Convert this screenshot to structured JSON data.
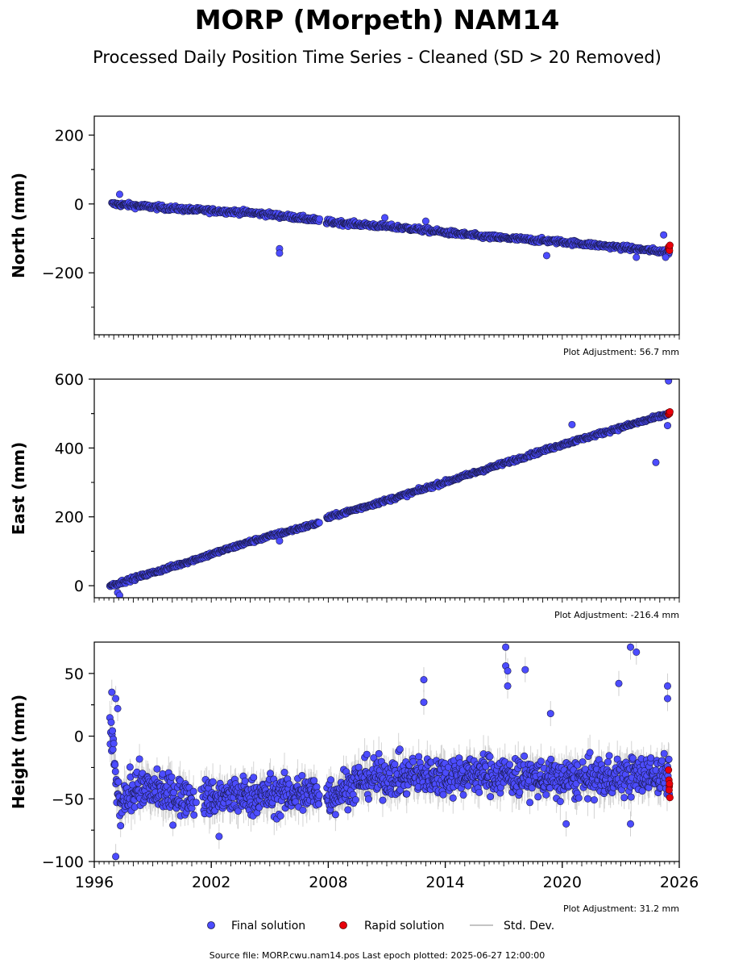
{
  "title": "MORP (Morpeth) NAM14",
  "subtitle": "Processed Daily Position Time Series - Cleaned (SD > 20 Removed)",
  "footer": "Source file: MORP.cwu.nam14.pos  Last epoch plotted: 2025-06-27 12:00:00",
  "legend": {
    "final": "Final solution",
    "rapid": "Rapid solution",
    "std": "Std. Dev."
  },
  "colors": {
    "final": "#4c4cff",
    "final_edge": "#1a1a4a",
    "rapid": "#e8000b",
    "std": "#b0b0b0"
  },
  "chart_data": [
    {
      "type": "scatter",
      "ylabel": "North (mm)",
      "adjustment": "Plot Adjustment: 56.7 mm",
      "xlim": [
        1996,
        2026
      ],
      "ylim": [
        -380,
        255
      ],
      "yticks": [
        -200,
        0,
        200
      ],
      "yticklabels": [
        "−200",
        "0",
        "200"
      ],
      "series": [
        {
          "role": "final",
          "trend": [
            [
              1996.9,
              0
            ],
            [
              2001,
              -17
            ],
            [
              2004,
              -25
            ],
            [
              2006.5,
              -40
            ],
            [
              2008,
              -52
            ],
            [
              2012,
              -70
            ],
            [
              2016,
              -95
            ],
            [
              2020,
              -110
            ],
            [
              2025.5,
              -140
            ]
          ],
          "noise": 5,
          "outliers": [
            [
              1997.3,
              28
            ],
            [
              2005.5,
              -130
            ],
            [
              2005.5,
              -143
            ],
            [
              2010.9,
              -40
            ],
            [
              2013,
              -50
            ],
            [
              2019.2,
              -150
            ],
            [
              2023.8,
              -155
            ],
            [
              2025.2,
              -90
            ],
            [
              2025.3,
              -155
            ]
          ]
        },
        {
          "role": "rapid",
          "points": [
            [
              2025.45,
              -125
            ],
            [
              2025.47,
              -132
            ],
            [
              2025.49,
              -128
            ],
            [
              2025.5,
              -135
            ],
            [
              2025.52,
              -120
            ]
          ]
        }
      ]
    },
    {
      "type": "scatter",
      "ylabel": "East (mm)",
      "adjustment": "Plot Adjustment: -216.4 mm",
      "xlim": [
        1996,
        2026
      ],
      "ylim": [
        -35,
        600
      ],
      "yticks": [
        0,
        200,
        400,
        600
      ],
      "yticklabels": [
        "0",
        "200",
        "400",
        "600"
      ],
      "series": [
        {
          "role": "final",
          "trend": [
            [
              1996.8,
              0
            ],
            [
              2000,
              55
            ],
            [
              2004,
              128
            ],
            [
              2007.5,
              182
            ],
            [
              2008,
              198
            ],
            [
              2012,
              265
            ],
            [
              2016,
              337
            ],
            [
              2020,
              410
            ],
            [
              2025.5,
              500
            ]
          ],
          "noise": 4,
          "outliers": [
            [
              1997.2,
              -20
            ],
            [
              1997.3,
              -28
            ],
            [
              2005.5,
              130
            ],
            [
              2020.5,
              468
            ],
            [
              2024.8,
              358
            ],
            [
              2025.4,
              465
            ],
            [
              2025.45,
              595
            ]
          ]
        },
        {
          "role": "rapid",
          "points": [
            [
              2025.45,
              498
            ],
            [
              2025.47,
              503
            ],
            [
              2025.5,
              500
            ],
            [
              2025.52,
              505
            ]
          ]
        }
      ]
    },
    {
      "type": "scatter",
      "ylabel": "Height (mm)",
      "adjustment": "Plot Adjustment: 31.2 mm",
      "xlim": [
        1996,
        2026
      ],
      "ylim": [
        -100,
        75
      ],
      "yticks": [
        -100,
        -50,
        0,
        50
      ],
      "yticklabels": [
        "−100",
        "−50",
        "0",
        "50"
      ],
      "xticks": [
        1996,
        2002,
        2008,
        2014,
        2020,
        2026
      ],
      "xticklabels": [
        "1996",
        "2002",
        "2008",
        "2014",
        "2020",
        "2026"
      ],
      "series": [
        {
          "role": "final",
          "trend": [
            [
              1996.8,
              10
            ],
            [
              1997.3,
              -60
            ],
            [
              1998,
              -40
            ],
            [
              2001,
              -50
            ],
            [
              2004,
              -48
            ],
            [
              2007.5,
              -45
            ],
            [
              2008,
              -48
            ],
            [
              2010,
              -33
            ],
            [
              2016,
              -30
            ],
            [
              2020,
              -35
            ],
            [
              2025.5,
              -30
            ]
          ],
          "noise": 11,
          "outliers": [
            [
              1996.9,
              35
            ],
            [
              1997.1,
              30
            ],
            [
              1997.2,
              22
            ],
            [
              1997.1,
              -96
            ],
            [
              2012.9,
              45
            ],
            [
              2012.9,
              27
            ],
            [
              2017.1,
              71
            ],
            [
              2017.1,
              56
            ],
            [
              2017.2,
              52
            ],
            [
              2017.2,
              40
            ],
            [
              2018.1,
              53
            ],
            [
              2019.4,
              18
            ],
            [
              2022.9,
              42
            ],
            [
              2023.5,
              71
            ],
            [
              2023.8,
              67
            ],
            [
              2025.4,
              40
            ],
            [
              2025.4,
              30
            ],
            [
              2020.2,
              -70
            ],
            [
              2023.5,
              -70
            ],
            [
              2002.4,
              -80
            ]
          ]
        },
        {
          "role": "rapid",
          "points": [
            [
              2025.45,
              -27
            ],
            [
              2025.47,
              -35
            ],
            [
              2025.49,
              -40
            ],
            [
              2025.5,
              -38
            ],
            [
              2025.52,
              -49
            ],
            [
              2025.48,
              -43
            ]
          ]
        }
      ]
    }
  ]
}
